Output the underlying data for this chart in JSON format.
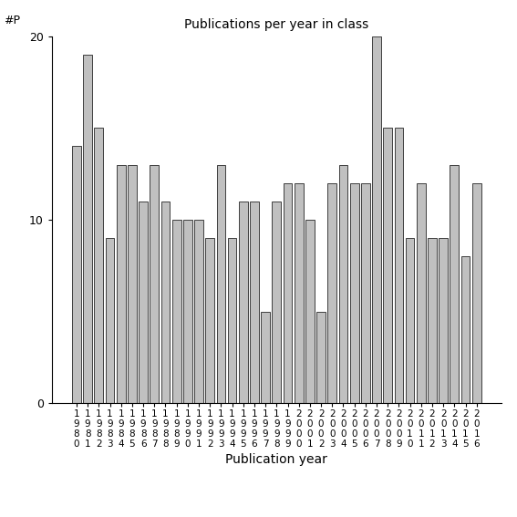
{
  "title": "Publications per year in class",
  "xlabel": "Publication year",
  "ylabel": "#P",
  "years": [
    1980,
    1981,
    1982,
    1983,
    1984,
    1985,
    1986,
    1987,
    1988,
    1989,
    1990,
    1991,
    1992,
    1993,
    1994,
    1995,
    1996,
    1997,
    1998,
    1999,
    2000,
    2001,
    2002,
    2003,
    2004,
    2005,
    2006,
    2007,
    2008,
    2009,
    2010,
    2011,
    2012,
    2013,
    2014,
    2015,
    2016
  ],
  "values": [
    14,
    19,
    15,
    9,
    13,
    13,
    11,
    13,
    11,
    10,
    10,
    10,
    9,
    13,
    9,
    11,
    11,
    5,
    11,
    12,
    12,
    10,
    5,
    12,
    13,
    12,
    12,
    20,
    15,
    15,
    9,
    12,
    9,
    9,
    13,
    8,
    12
  ],
  "bar_color": "#c0c0c0",
  "bar_edgecolor": "#000000",
  "ylim": [
    0,
    20
  ],
  "yticks": [
    0,
    10,
    20
  ],
  "background_color": "#ffffff",
  "figsize": [
    5.67,
    5.67
  ],
  "dpi": 100
}
